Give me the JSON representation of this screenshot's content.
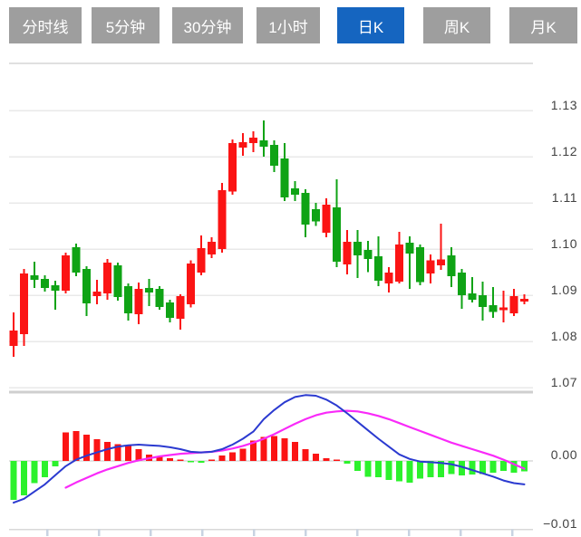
{
  "toolbar": {
    "buttons": [
      {
        "label": "分时线",
        "active": false
      },
      {
        "label": "5分钟",
        "active": false
      },
      {
        "label": "30分钟",
        "active": false
      },
      {
        "label": "1小时",
        "active": false
      },
      {
        "label": "日K",
        "active": true
      },
      {
        "label": "周K",
        "active": false
      },
      {
        "label": "月K",
        "active": false
      }
    ]
  },
  "colors": {
    "up_red": "#fb1414",
    "down_green": "#0fa315",
    "hist_red": "#fb1414",
    "hist_green": "#2cf12c",
    "dif_blue": "#2b3ad0",
    "dea_magenta": "#f92af9",
    "button_bg": "#9e9e9e",
    "button_active_bg": "#1565c0",
    "button_text": "#ffffff",
    "label_color": "#414141",
    "grid": "#e9e9e9",
    "separator": "#cfcfcf",
    "zero_line": "#e3e3e3",
    "axis_line": "#d8d8d8",
    "tick": "#c8d3e2",
    "background": "#ffffff"
  },
  "chart_data": {
    "type": "candlestick_with_macd",
    "title": "",
    "convention": "red = up (close > open), green = down (close < open)",
    "price_axis": {
      "labels": [
        "1.13",
        "1.12",
        "1.11",
        "1.10",
        "1.09",
        "1.08",
        "1.07"
      ],
      "range": [
        1.07,
        1.14
      ],
      "grid": true,
      "position": "right"
    },
    "macd_axis": {
      "labels": [
        "0.00",
        "−0.01"
      ],
      "range": [
        -0.0105,
        0.0106
      ],
      "position": "right"
    },
    "x_axis": {
      "tick_count": 10,
      "labels": []
    },
    "candles_ohlc": [
      [
        1.079,
        1.0863,
        1.0767,
        1.0824
      ],
      [
        1.0816,
        1.0957,
        1.079,
        1.0947
      ],
      [
        1.0943,
        1.0973,
        1.0916,
        1.0933
      ],
      [
        1.0935,
        1.0943,
        1.0908,
        1.0916
      ],
      [
        1.0922,
        1.0931,
        1.0869,
        1.091
      ],
      [
        1.091,
        1.0992,
        1.0904,
        1.0986
      ],
      [
        1.1004,
        1.1012,
        1.0941,
        1.0949
      ],
      [
        1.0957,
        1.0963,
        1.0855,
        1.0882
      ],
      [
        1.0898,
        1.0933,
        1.088,
        1.0908
      ],
      [
        1.0904,
        1.0978,
        1.089,
        1.0971
      ],
      [
        1.0965,
        1.0971,
        1.0888,
        1.0896
      ],
      [
        1.092,
        1.0925,
        1.0845,
        1.0861
      ],
      [
        1.0859,
        1.0927,
        1.0837,
        1.0914
      ],
      [
        1.0916,
        1.0935,
        1.0876,
        1.0906
      ],
      [
        1.0914,
        1.092,
        1.0869,
        1.0875
      ],
      [
        1.0884,
        1.089,
        1.0841,
        1.0851
      ],
      [
        1.0849,
        1.0902,
        1.0825,
        1.0898
      ],
      [
        1.088,
        1.0975,
        1.0874,
        1.0969
      ],
      [
        1.0949,
        1.1029,
        1.0943,
        1.1002
      ],
      [
        1.0988,
        1.1025,
        1.098,
        1.1016
      ],
      [
        1.1,
        1.1143,
        1.0992,
        1.1127
      ],
      [
        1.1124,
        1.1237,
        1.1118,
        1.1229
      ],
      [
        1.122,
        1.1251,
        1.1202,
        1.1231
      ],
      [
        1.1229,
        1.1255,
        1.121,
        1.1241
      ],
      [
        1.1235,
        1.1278,
        1.12,
        1.1221
      ],
      [
        1.1225,
        1.1235,
        1.1167,
        1.118
      ],
      [
        1.1196,
        1.1229,
        1.1104,
        1.1112
      ],
      [
        1.1131,
        1.1147,
        1.1104,
        1.1118
      ],
      [
        1.1122,
        1.1129,
        1.1025,
        1.1053
      ],
      [
        1.1086,
        1.11,
        1.105,
        1.106
      ],
      [
        1.1035,
        1.111,
        1.1025,
        1.1096
      ],
      [
        1.109,
        1.1151,
        1.0961,
        1.0973
      ],
      [
        1.0967,
        1.1041,
        1.0945,
        1.1016
      ],
      [
        1.1016,
        1.1041,
        1.0937,
        1.0986
      ],
      [
        1.0998,
        1.1018,
        1.095,
        1.0978
      ],
      [
        1.0984,
        1.1027,
        1.092,
        1.0931
      ],
      [
        1.0925,
        1.0961,
        1.0906,
        1.0949
      ],
      [
        1.0929,
        1.1037,
        1.0925,
        1.101
      ],
      [
        1.1014,
        1.1027,
        1.0914,
        1.099
      ],
      [
        1.1004,
        1.101,
        1.0922,
        1.0929
      ],
      [
        1.0947,
        1.0988,
        1.0925,
        1.0975
      ],
      [
        1.0965,
        1.1055,
        1.0955,
        1.0977
      ],
      [
        1.0986,
        1.1004,
        1.0918,
        1.0941
      ],
      [
        1.0949,
        1.0957,
        1.0871,
        1.09
      ],
      [
        1.0904,
        1.0939,
        1.0884,
        1.089
      ],
      [
        1.09,
        1.0929,
        1.0845,
        1.0875
      ],
      [
        1.0878,
        1.0918,
        1.0851,
        1.0864
      ],
      [
        1.0868,
        1.091,
        1.0841,
        1.0874
      ],
      [
        1.0861,
        1.0914,
        1.0855,
        1.0898
      ],
      [
        1.0886,
        1.0902,
        1.088,
        1.0892
      ]
    ],
    "macd": {
      "histogram": [
        -0.006,
        -0.0053,
        -0.0034,
        -0.0025,
        -0.0008,
        0.0044,
        0.0046,
        0.004,
        0.0033,
        0.0029,
        0.0026,
        0.0024,
        0.0018,
        0.001,
        0.0007,
        0.0004,
        0.0002,
        -0.0002,
        -0.0003,
        0.0002,
        0.0008,
        0.0013,
        0.0019,
        0.0031,
        0.0037,
        0.0038,
        0.0035,
        0.0029,
        0.0018,
        0.0011,
        0.0004,
        0.0001,
        -0.0004,
        -0.0015,
        -0.0024,
        -0.0025,
        -0.0029,
        -0.0031,
        -0.0033,
        -0.0027,
        -0.0025,
        -0.0025,
        -0.002,
        -0.0022,
        -0.0021,
        -0.002,
        -0.0018,
        -0.0015,
        -0.0018,
        -0.0016
      ],
      "dif_line": [
        -0.0064,
        -0.0058,
        -0.0047,
        -0.0036,
        -0.0022,
        -0.0008,
        0.0002,
        0.0008,
        0.0013,
        0.0018,
        0.0022,
        0.0024,
        0.0025,
        0.0024,
        0.0023,
        0.0021,
        0.0018,
        0.0014,
        0.0013,
        0.0014,
        0.0018,
        0.0025,
        0.0034,
        0.0045,
        0.0064,
        0.0078,
        0.009,
        0.0098,
        0.0101,
        0.01,
        0.0094,
        0.0085,
        0.0073,
        0.006,
        0.0047,
        0.0034,
        0.0022,
        0.001,
        0.0003,
        -0.0001,
        -0.0002,
        -0.0003,
        -0.0005,
        -0.0009,
        -0.0014,
        -0.0019,
        -0.0024,
        -0.003,
        -0.0034,
        -0.0036
      ],
      "dea_line": [
        null,
        null,
        null,
        null,
        null,
        -0.0041,
        -0.0033,
        -0.0026,
        -0.0019,
        -0.0013,
        -0.0008,
        -0.0003,
        0.0001,
        0.0004,
        0.0007,
        0.0009,
        0.0011,
        0.0012,
        0.0013,
        0.0014,
        0.0016,
        0.0019,
        0.0023,
        0.0028,
        0.0034,
        0.0041,
        0.0049,
        0.0057,
        0.0064,
        0.007,
        0.0074,
        0.0076,
        0.0077,
        0.0076,
        0.0073,
        0.0069,
        0.0064,
        0.0058,
        0.0052,
        0.0046,
        0.004,
        0.0034,
        0.0028,
        0.0023,
        0.0018,
        0.0013,
        0.0008,
        0.0002,
        -0.0005,
        -0.0012
      ]
    }
  }
}
